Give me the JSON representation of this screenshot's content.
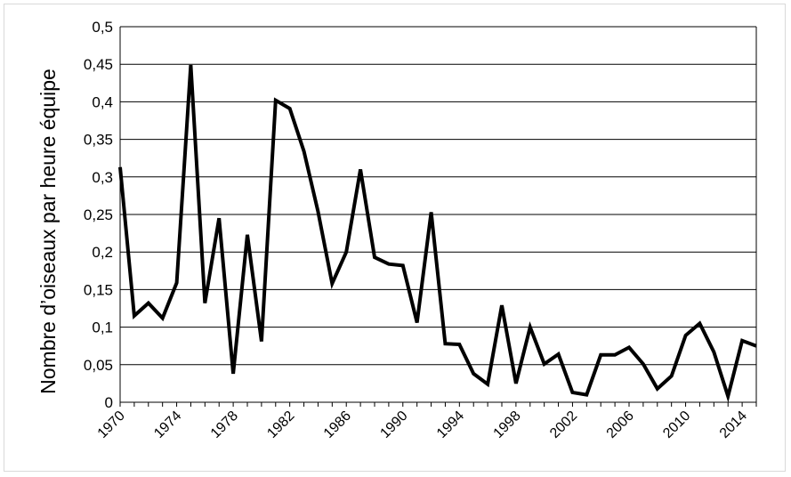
{
  "chart_data": {
    "type": "line",
    "title": "",
    "xlabel": "",
    "ylabel": "Nombre d’oiseaux par heure équipe",
    "xlim": [
      1970,
      2015
    ],
    "ylim": [
      0,
      0.5
    ],
    "y_ticks": [
      "0",
      "0,05",
      "0,1",
      "0,15",
      "0,2",
      "0,25",
      "0,3",
      "0,35",
      "0,4",
      "0,45",
      "0,5"
    ],
    "x_ticks": [
      "1970",
      "1974",
      "1978",
      "1982",
      "1986",
      "1990",
      "1994",
      "1998",
      "2002",
      "2006",
      "2010",
      "2014"
    ],
    "grid": "horizontal",
    "legend": "none",
    "line_color": "#000000",
    "series": [
      {
        "x": [
          1970,
          1971,
          1972,
          1973,
          1974,
          1975,
          1976,
          1977,
          1978,
          1979,
          1980,
          1981,
          1982,
          1983,
          1984,
          1985,
          1986,
          1987,
          1988,
          1989,
          1990,
          1991,
          1992,
          1993,
          1994,
          1995,
          1996,
          1997,
          1998,
          1999,
          2000,
          2001,
          2002,
          2003,
          2004,
          2005,
          2006,
          2007,
          2008,
          2009,
          2010,
          2011,
          2012,
          2013,
          2014,
          2015
        ],
        "values": [
          0.313,
          0.115,
          0.132,
          0.112,
          0.159,
          0.449,
          0.132,
          0.245,
          0.038,
          0.223,
          0.081,
          0.402,
          0.391,
          0.334,
          0.254,
          0.158,
          0.2,
          0.31,
          0.193,
          0.184,
          0.182,
          0.106,
          0.253,
          0.078,
          0.077,
          0.038,
          0.024,
          0.129,
          0.025,
          0.1,
          0.051,
          0.064,
          0.013,
          0.01,
          0.063,
          0.063,
          0.073,
          0.051,
          0.018,
          0.035,
          0.089,
          0.105,
          0.067,
          0.008,
          0.082,
          0.075
        ]
      }
    ]
  }
}
